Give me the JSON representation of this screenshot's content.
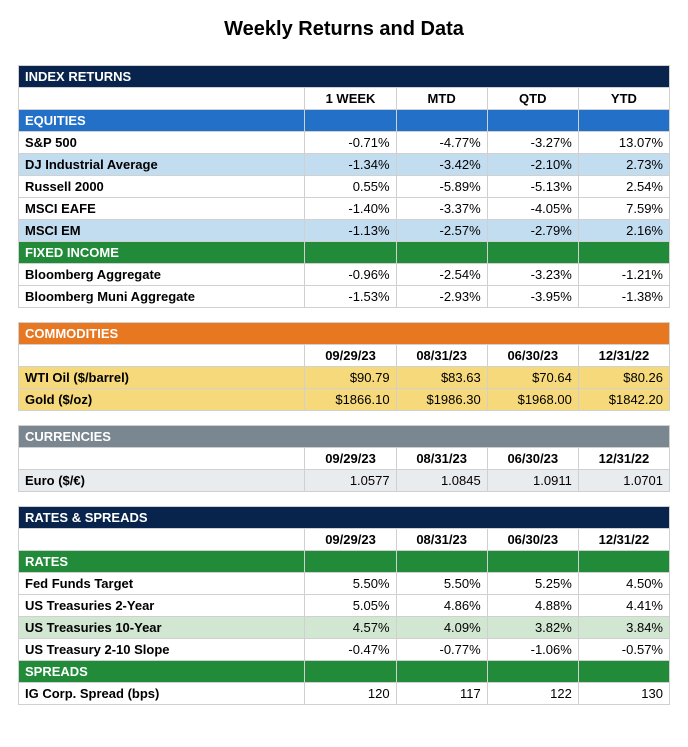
{
  "title": "Weekly Returns and Data",
  "index_returns": {
    "section": "INDEX RETURNS",
    "headers": [
      "1 WEEK",
      "MTD",
      "QTD",
      "YTD"
    ],
    "equities_label": "EQUITIES",
    "equities": [
      {
        "name": "S&P 500",
        "wk": "-0.71%",
        "mtd": "-4.77%",
        "qtd": "-3.27%",
        "ytd": "13.07%",
        "shade": "plain"
      },
      {
        "name": "DJ Industrial Average",
        "wk": "-1.34%",
        "mtd": "-3.42%",
        "qtd": "-2.10%",
        "ytd": "2.73%",
        "shade": "ltblue"
      },
      {
        "name": "Russell 2000",
        "wk": "0.55%",
        "mtd": "-5.89%",
        "qtd": "-5.13%",
        "ytd": "2.54%",
        "shade": "plain"
      },
      {
        "name": "MSCI EAFE",
        "wk": "-1.40%",
        "mtd": "-3.37%",
        "qtd": "-4.05%",
        "ytd": "7.59%",
        "shade": "plain"
      },
      {
        "name": "MSCI EM",
        "wk": "-1.13%",
        "mtd": "-2.57%",
        "qtd": "-2.79%",
        "ytd": "2.16%",
        "shade": "ltblue"
      }
    ],
    "fixed_income_label": "FIXED INCOME",
    "fixed_income": [
      {
        "name": "Bloomberg Aggregate",
        "wk": "-0.96%",
        "mtd": "-2.54%",
        "qtd": "-3.23%",
        "ytd": "-1.21%",
        "shade": "plain"
      },
      {
        "name": "Bloomberg Muni Aggregate",
        "wk": "-1.53%",
        "mtd": "-2.93%",
        "qtd": "-3.95%",
        "ytd": "-1.38%",
        "shade": "plain"
      }
    ]
  },
  "commodities": {
    "section": "COMMODITIES",
    "headers": [
      "09/29/23",
      "08/31/23",
      "06/30/23",
      "12/31/22"
    ],
    "rows": [
      {
        "name": "WTI Oil ($/barrel)",
        "c1": "$90.79",
        "c2": "$83.63",
        "c3": "$70.64",
        "c4": "$80.26",
        "shade": "yellow"
      },
      {
        "name": "Gold ($/oz)",
        "c1": "$1866.10",
        "c2": "$1986.30",
        "c3": "$1968.00",
        "c4": "$1842.20",
        "shade": "yellow"
      }
    ]
  },
  "currencies": {
    "section": "CURRENCIES",
    "headers": [
      "09/29/23",
      "08/31/23",
      "06/30/23",
      "12/31/22"
    ],
    "rows": [
      {
        "name": "Euro ($/€)",
        "c1": "1.0577",
        "c2": "1.0845",
        "c3": "1.0911",
        "c4": "1.0701",
        "shade": "ltgrey"
      }
    ]
  },
  "rates_spreads": {
    "section": "RATES & SPREADS",
    "headers": [
      "09/29/23",
      "08/31/23",
      "06/30/23",
      "12/31/22"
    ],
    "rates_label": "RATES",
    "rates": [
      {
        "name": "Fed Funds Target",
        "c1": "5.50%",
        "c2": "5.50%",
        "c3": "5.25%",
        "c4": "4.50%",
        "shade": "plain"
      },
      {
        "name": "US Treasuries 2-Year",
        "c1": "5.05%",
        "c2": "4.86%",
        "c3": "4.88%",
        "c4": "4.41%",
        "shade": "plain"
      },
      {
        "name": "US Treasuries 10-Year",
        "c1": "4.57%",
        "c2": "4.09%",
        "c3": "3.82%",
        "c4": "3.84%",
        "shade": "ltgreen"
      },
      {
        "name": "US Treasury 2-10 Slope",
        "c1": "-0.47%",
        "c2": "-0.77%",
        "c3": "-1.06%",
        "c4": "-0.57%",
        "shade": "plain"
      }
    ],
    "spreads_label": "SPREADS",
    "spreads": [
      {
        "name": "IG Corp. Spread (bps)",
        "c1": "120",
        "c2": "117",
        "c3": "122",
        "c4": "130",
        "shade": "plain"
      }
    ]
  },
  "colors": {
    "dark_header": "#08244c",
    "blue_sub": "#2270c8",
    "green_sub": "#228b3a",
    "orange_sub": "#e87722",
    "grey_sub": "#7a8690",
    "lt_blue": "#c3ddf0",
    "yellow": "#f5d97a",
    "lt_green": "#d2e7d2",
    "lt_grey": "#e9ecef",
    "border": "#d0d0d0"
  }
}
